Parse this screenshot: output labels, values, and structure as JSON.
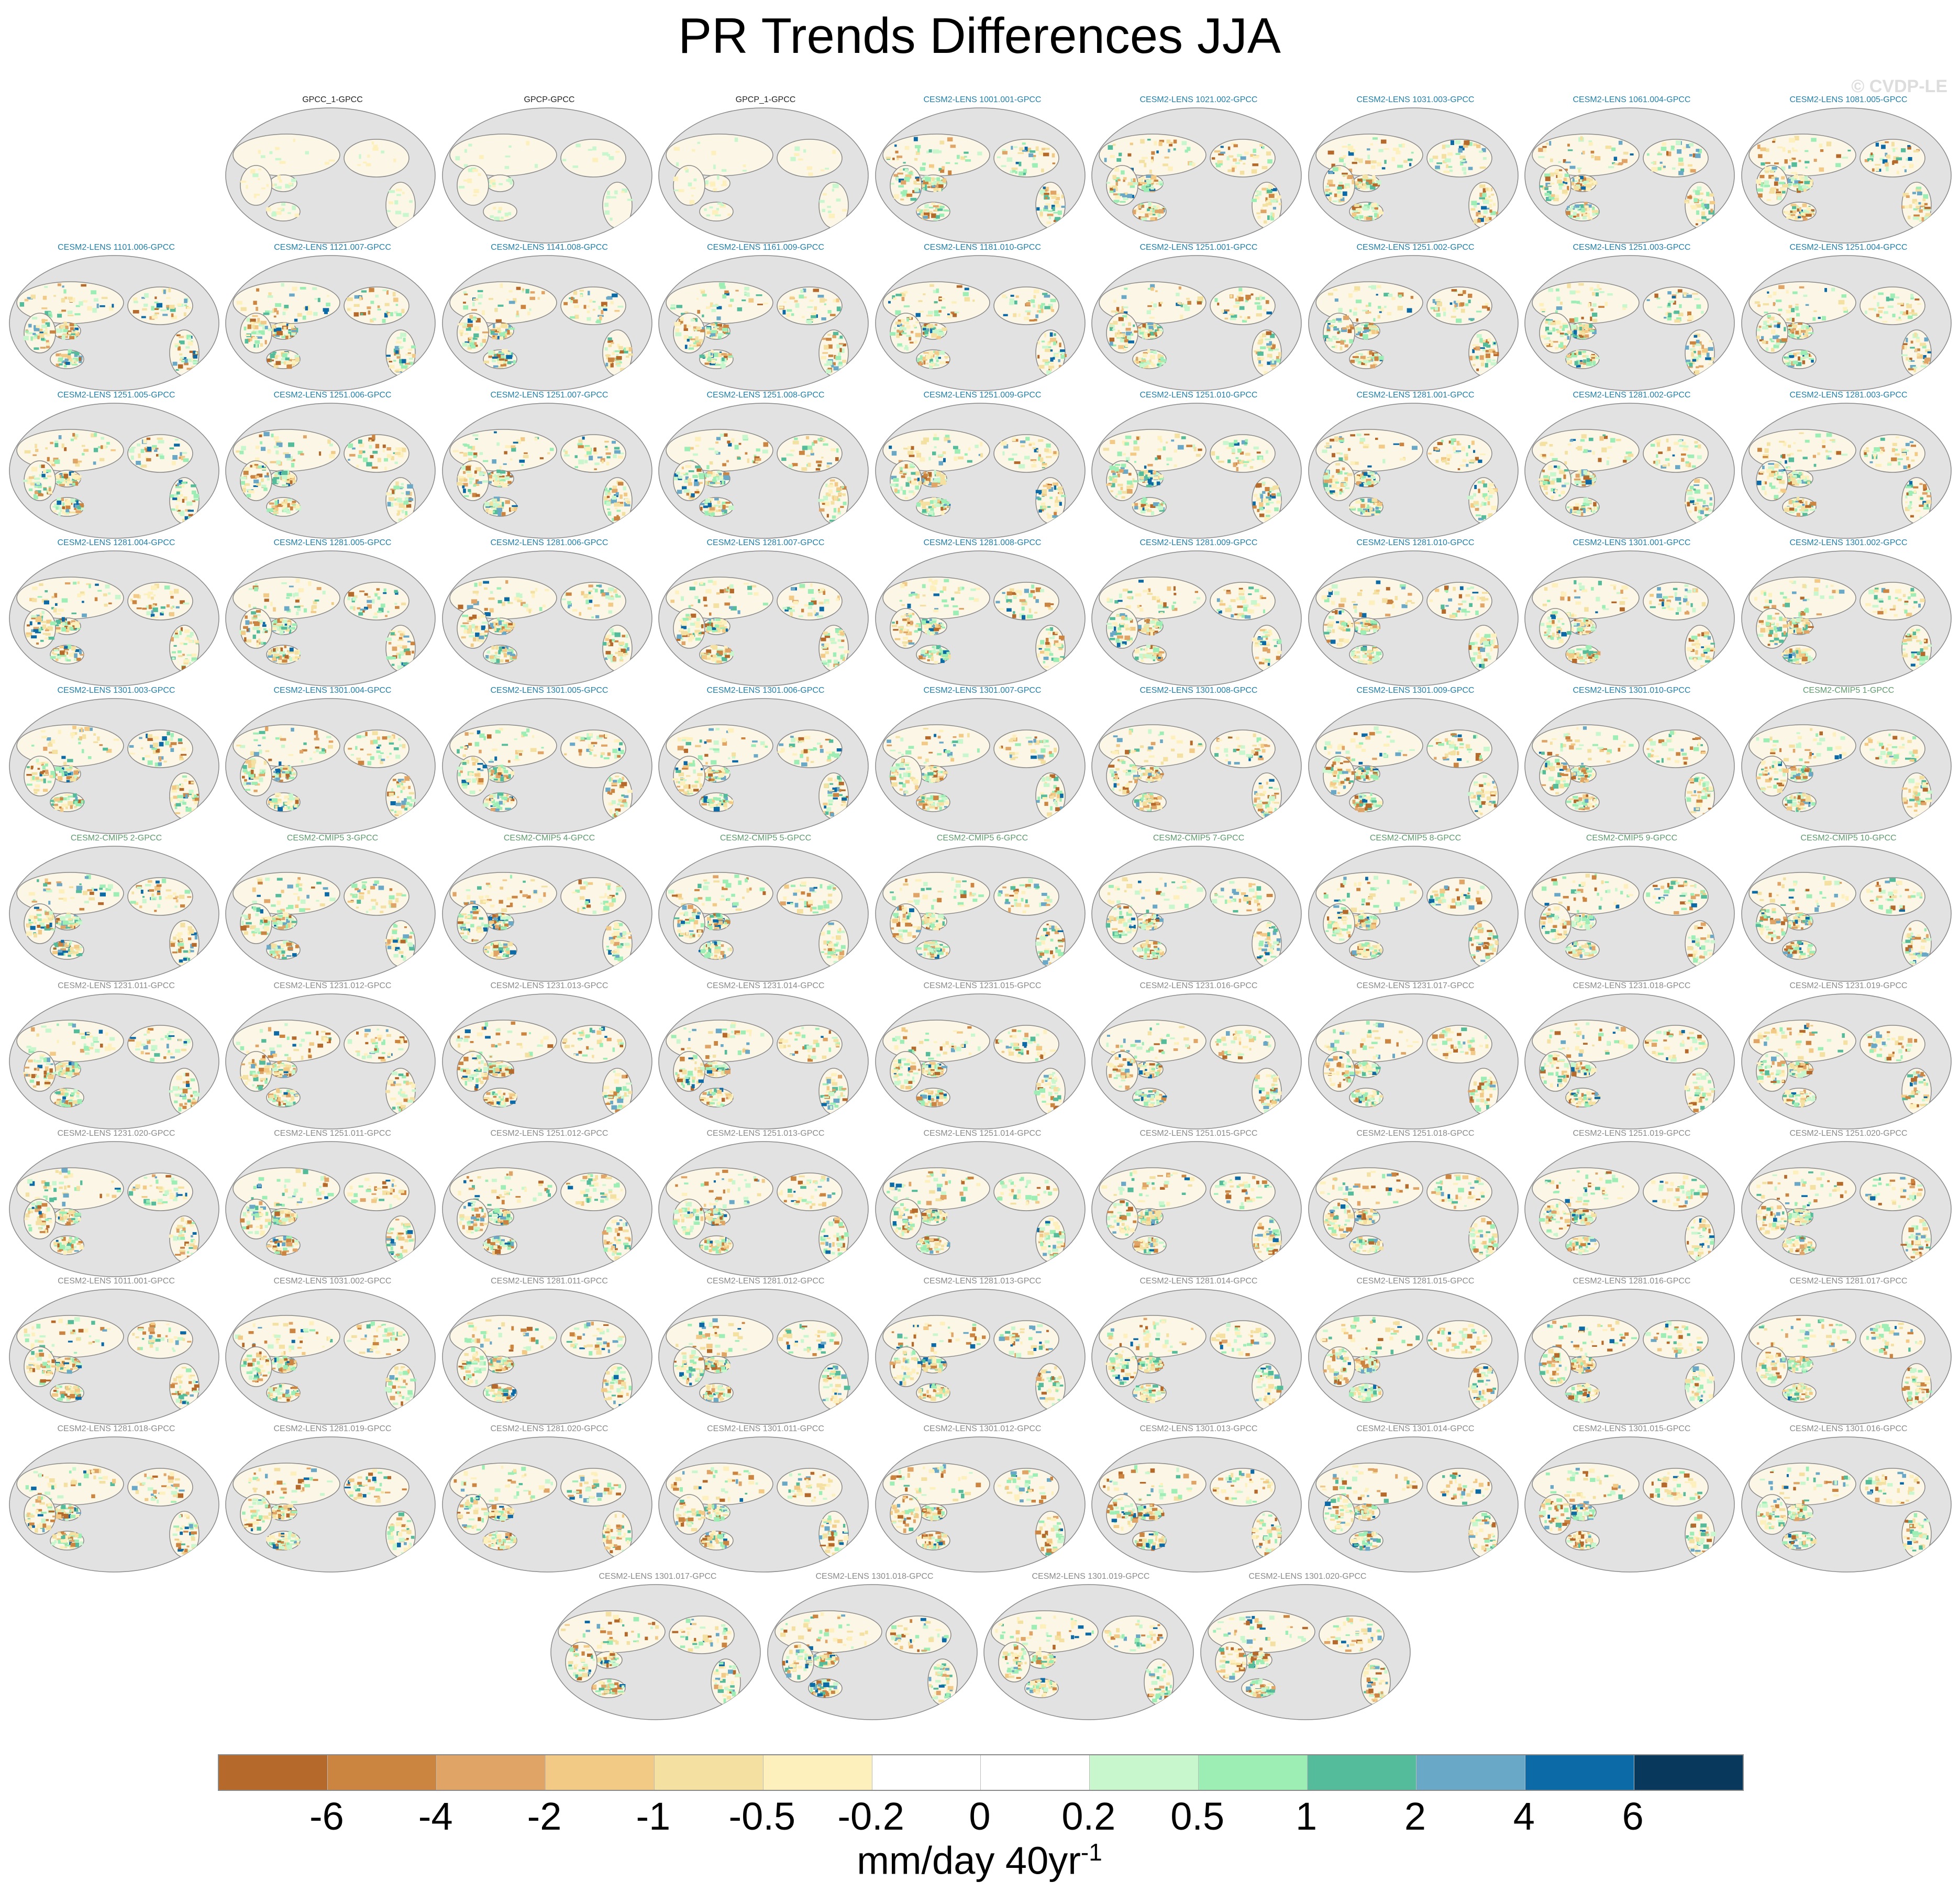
{
  "title": "PR Trends Differences JJA",
  "credit": "© CVDP-LE",
  "panel_label_colors": {
    "obs": "#222222",
    "lens_blue": "#1f7fa8",
    "cmip": "#5d9a6b",
    "lens_gray": "#8a8a8a"
  },
  "map_colors": {
    "ocean": "#e2e2e2",
    "land_dry": "#f3e3a6",
    "land_wet": "#b7f0c8",
    "coast": "#888888"
  },
  "panels": [
    {
      "label": "GPCC_1-GPCC",
      "style": "obs"
    },
    {
      "label": "GPCP-GPCC",
      "style": "obs"
    },
    {
      "label": "GPCP_1-GPCC",
      "style": "obs"
    },
    {
      "label": "CESM2-LENS 1001.001-GPCC",
      "style": "lens_blue"
    },
    {
      "label": "CESM2-LENS 1021.002-GPCC",
      "style": "lens_blue"
    },
    {
      "label": "CESM2-LENS 1031.003-GPCC",
      "style": "lens_blue"
    },
    {
      "label": "CESM2-LENS 1061.004-GPCC",
      "style": "lens_blue"
    },
    {
      "label": "CESM2-LENS 1081.005-GPCC",
      "style": "lens_blue"
    },
    {
      "label": "CESM2-LENS 1101.006-GPCC",
      "style": "lens_blue"
    },
    {
      "label": "CESM2-LENS 1121.007-GPCC",
      "style": "lens_blue"
    },
    {
      "label": "CESM2-LENS 1141.008-GPCC",
      "style": "lens_blue"
    },
    {
      "label": "CESM2-LENS 1161.009-GPCC",
      "style": "lens_blue"
    },
    {
      "label": "CESM2-LENS 1181.010-GPCC",
      "style": "lens_blue"
    },
    {
      "label": "CESM2-LENS 1251.001-GPCC",
      "style": "lens_blue"
    },
    {
      "label": "CESM2-LENS 1251.002-GPCC",
      "style": "lens_blue"
    },
    {
      "label": "CESM2-LENS 1251.003-GPCC",
      "style": "lens_blue"
    },
    {
      "label": "CESM2-LENS 1251.004-GPCC",
      "style": "lens_blue"
    },
    {
      "label": "CESM2-LENS 1251.005-GPCC",
      "style": "lens_blue"
    },
    {
      "label": "CESM2-LENS 1251.006-GPCC",
      "style": "lens_blue"
    },
    {
      "label": "CESM2-LENS 1251.007-GPCC",
      "style": "lens_blue"
    },
    {
      "label": "CESM2-LENS 1251.008-GPCC",
      "style": "lens_blue"
    },
    {
      "label": "CESM2-LENS 1251.009-GPCC",
      "style": "lens_blue"
    },
    {
      "label": "CESM2-LENS 1251.010-GPCC",
      "style": "lens_blue"
    },
    {
      "label": "CESM2-LENS 1281.001-GPCC",
      "style": "lens_blue"
    },
    {
      "label": "CESM2-LENS 1281.002-GPCC",
      "style": "lens_blue"
    },
    {
      "label": "CESM2-LENS 1281.003-GPCC",
      "style": "lens_blue"
    },
    {
      "label": "CESM2-LENS 1281.004-GPCC",
      "style": "lens_blue"
    },
    {
      "label": "CESM2-LENS 1281.005-GPCC",
      "style": "lens_blue"
    },
    {
      "label": "CESM2-LENS 1281.006-GPCC",
      "style": "lens_blue"
    },
    {
      "label": "CESM2-LENS 1281.007-GPCC",
      "style": "lens_blue"
    },
    {
      "label": "CESM2-LENS 1281.008-GPCC",
      "style": "lens_blue"
    },
    {
      "label": "CESM2-LENS 1281.009-GPCC",
      "style": "lens_blue"
    },
    {
      "label": "CESM2-LENS 1281.010-GPCC",
      "style": "lens_blue"
    },
    {
      "label": "CESM2-LENS 1301.001-GPCC",
      "style": "lens_blue"
    },
    {
      "label": "CESM2-LENS 1301.002-GPCC",
      "style": "lens_blue"
    },
    {
      "label": "CESM2-LENS 1301.003-GPCC",
      "style": "lens_blue"
    },
    {
      "label": "CESM2-LENS 1301.004-GPCC",
      "style": "lens_blue"
    },
    {
      "label": "CESM2-LENS 1301.005-GPCC",
      "style": "lens_blue"
    },
    {
      "label": "CESM2-LENS 1301.006-GPCC",
      "style": "lens_blue"
    },
    {
      "label": "CESM2-LENS 1301.007-GPCC",
      "style": "lens_blue"
    },
    {
      "label": "CESM2-LENS 1301.008-GPCC",
      "style": "lens_blue"
    },
    {
      "label": "CESM2-LENS 1301.009-GPCC",
      "style": "lens_blue"
    },
    {
      "label": "CESM2-LENS 1301.010-GPCC",
      "style": "lens_blue"
    },
    {
      "label": "CESM2-CMIP5 1-GPCC",
      "style": "cmip"
    },
    {
      "label": "CESM2-CMIP5 2-GPCC",
      "style": "cmip"
    },
    {
      "label": "CESM2-CMIP5 3-GPCC",
      "style": "cmip"
    },
    {
      "label": "CESM2-CMIP5 4-GPCC",
      "style": "cmip"
    },
    {
      "label": "CESM2-CMIP5 5-GPCC",
      "style": "cmip"
    },
    {
      "label": "CESM2-CMIP5 6-GPCC",
      "style": "cmip"
    },
    {
      "label": "CESM2-CMIP5 7-GPCC",
      "style": "cmip"
    },
    {
      "label": "CESM2-CMIP5 8-GPCC",
      "style": "cmip"
    },
    {
      "label": "CESM2-CMIP5 9-GPCC",
      "style": "cmip"
    },
    {
      "label": "CESM2-CMIP5 10-GPCC",
      "style": "cmip"
    },
    {
      "label": "CESM2-LENS 1231.011-GPCC",
      "style": "lens_gray"
    },
    {
      "label": "CESM2-LENS 1231.012-GPCC",
      "style": "lens_gray"
    },
    {
      "label": "CESM2-LENS 1231.013-GPCC",
      "style": "lens_gray"
    },
    {
      "label": "CESM2-LENS 1231.014-GPCC",
      "style": "lens_gray"
    },
    {
      "label": "CESM2-LENS 1231.015-GPCC",
      "style": "lens_gray"
    },
    {
      "label": "CESM2-LENS 1231.016-GPCC",
      "style": "lens_gray"
    },
    {
      "label": "CESM2-LENS 1231.017-GPCC",
      "style": "lens_gray"
    },
    {
      "label": "CESM2-LENS 1231.018-GPCC",
      "style": "lens_gray"
    },
    {
      "label": "CESM2-LENS 1231.019-GPCC",
      "style": "lens_gray"
    },
    {
      "label": "CESM2-LENS 1231.020-GPCC",
      "style": "lens_gray"
    },
    {
      "label": "CESM2-LENS 1251.011-GPCC",
      "style": "lens_gray"
    },
    {
      "label": "CESM2-LENS 1251.012-GPCC",
      "style": "lens_gray"
    },
    {
      "label": "CESM2-LENS 1251.013-GPCC",
      "style": "lens_gray"
    },
    {
      "label": "CESM2-LENS 1251.014-GPCC",
      "style": "lens_gray"
    },
    {
      "label": "CESM2-LENS 1251.015-GPCC",
      "style": "lens_gray"
    },
    {
      "label": "CESM2-LENS 1251.018-GPCC",
      "style": "lens_gray"
    },
    {
      "label": "CESM2-LENS 1251.019-GPCC",
      "style": "lens_gray"
    },
    {
      "label": "CESM2-LENS 1251.020-GPCC",
      "style": "lens_gray"
    },
    {
      "label": "CESM2-LENS 1011.001-GPCC",
      "style": "lens_gray"
    },
    {
      "label": "CESM2-LENS 1031.002-GPCC",
      "style": "lens_gray"
    },
    {
      "label": "CESM2-LENS 1281.011-GPCC",
      "style": "lens_gray"
    },
    {
      "label": "CESM2-LENS 1281.012-GPCC",
      "style": "lens_gray"
    },
    {
      "label": "CESM2-LENS 1281.013-GPCC",
      "style": "lens_gray"
    },
    {
      "label": "CESM2-LENS 1281.014-GPCC",
      "style": "lens_gray"
    },
    {
      "label": "CESM2-LENS 1281.015-GPCC",
      "style": "lens_gray"
    },
    {
      "label": "CESM2-LENS 1281.016-GPCC",
      "style": "lens_gray"
    },
    {
      "label": "CESM2-LENS 1281.017-GPCC",
      "style": "lens_gray"
    },
    {
      "label": "CESM2-LENS 1281.018-GPCC",
      "style": "lens_gray"
    },
    {
      "label": "CESM2-LENS 1281.019-GPCC",
      "style": "lens_gray"
    },
    {
      "label": "CESM2-LENS 1281.020-GPCC",
      "style": "lens_gray"
    },
    {
      "label": "CESM2-LENS 1301.011-GPCC",
      "style": "lens_gray"
    },
    {
      "label": "CESM2-LENS 1301.012-GPCC",
      "style": "lens_gray"
    },
    {
      "label": "CESM2-LENS 1301.013-GPCC",
      "style": "lens_gray"
    },
    {
      "label": "CESM2-LENS 1301.014-GPCC",
      "style": "lens_gray"
    },
    {
      "label": "CESM2-LENS 1301.015-GPCC",
      "style": "lens_gray"
    },
    {
      "label": "CESM2-LENS 1301.016-GPCC",
      "style": "lens_gray"
    },
    {
      "label": "CESM2-LENS 1301.017-GPCC",
      "style": "lens_gray"
    },
    {
      "label": "CESM2-LENS 1301.018-GPCC",
      "style": "lens_gray"
    },
    {
      "label": "CESM2-LENS 1301.019-GPCC",
      "style": "lens_gray"
    },
    {
      "label": "CESM2-LENS 1301.020-GPCC",
      "style": "lens_gray"
    }
  ],
  "colorbar": {
    "colors": [
      "#b5692a",
      "#cc8540",
      "#e0a566",
      "#f2ca85",
      "#f4e0a0",
      "#fdf0bc",
      "#ffffff",
      "#ffffff",
      "#c8f7cd",
      "#9deeb5",
      "#54bc9b",
      "#6aa8c8",
      "#0c6aa6",
      "#08385c"
    ],
    "ticks": [
      "-6",
      "-4",
      "-2",
      "-1",
      "-0.5",
      "-0.2",
      "0",
      "0.2",
      "0.5",
      "1",
      "2",
      "4",
      "6"
    ],
    "units_base": "mm/day 40yr",
    "units_exp": "-1"
  }
}
